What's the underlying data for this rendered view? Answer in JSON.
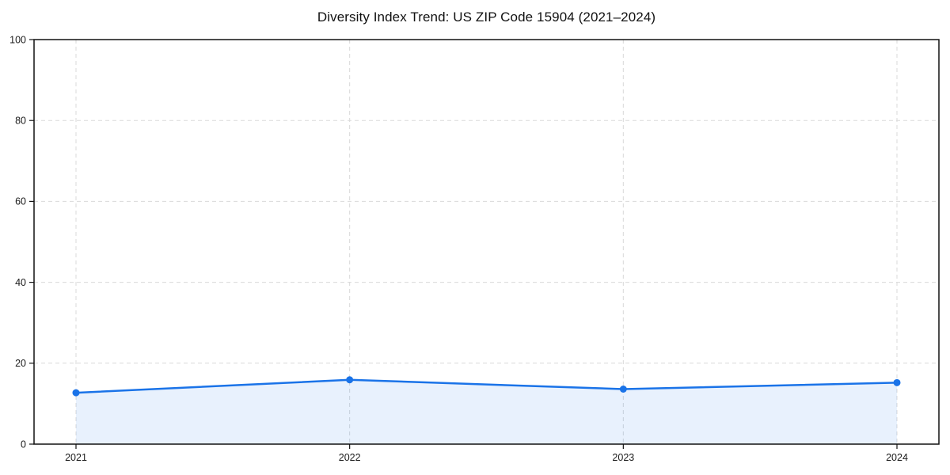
{
  "chart_data": {
    "type": "area",
    "title": "Diversity Index Trend: US ZIP Code 15904 (2021–2024)",
    "categories": [
      "2021",
      "2022",
      "2023",
      "2024"
    ],
    "values": [
      12.7,
      15.9,
      13.6,
      15.2
    ],
    "xlabel": "",
    "ylabel": "",
    "ylim": [
      0,
      100
    ],
    "yticks": [
      0,
      20,
      40,
      60,
      80,
      100
    ],
    "grid": true,
    "grid_style": "dashed",
    "legend_position": "none",
    "colors": {
      "line": "#1a73e8",
      "marker": "#1a73e8",
      "fill": "rgba(26,115,232,0.10)",
      "grid": "#d9d9d9",
      "axis": "#111111",
      "tick_text": "#1a1a1a",
      "background": "#ffffff"
    }
  }
}
